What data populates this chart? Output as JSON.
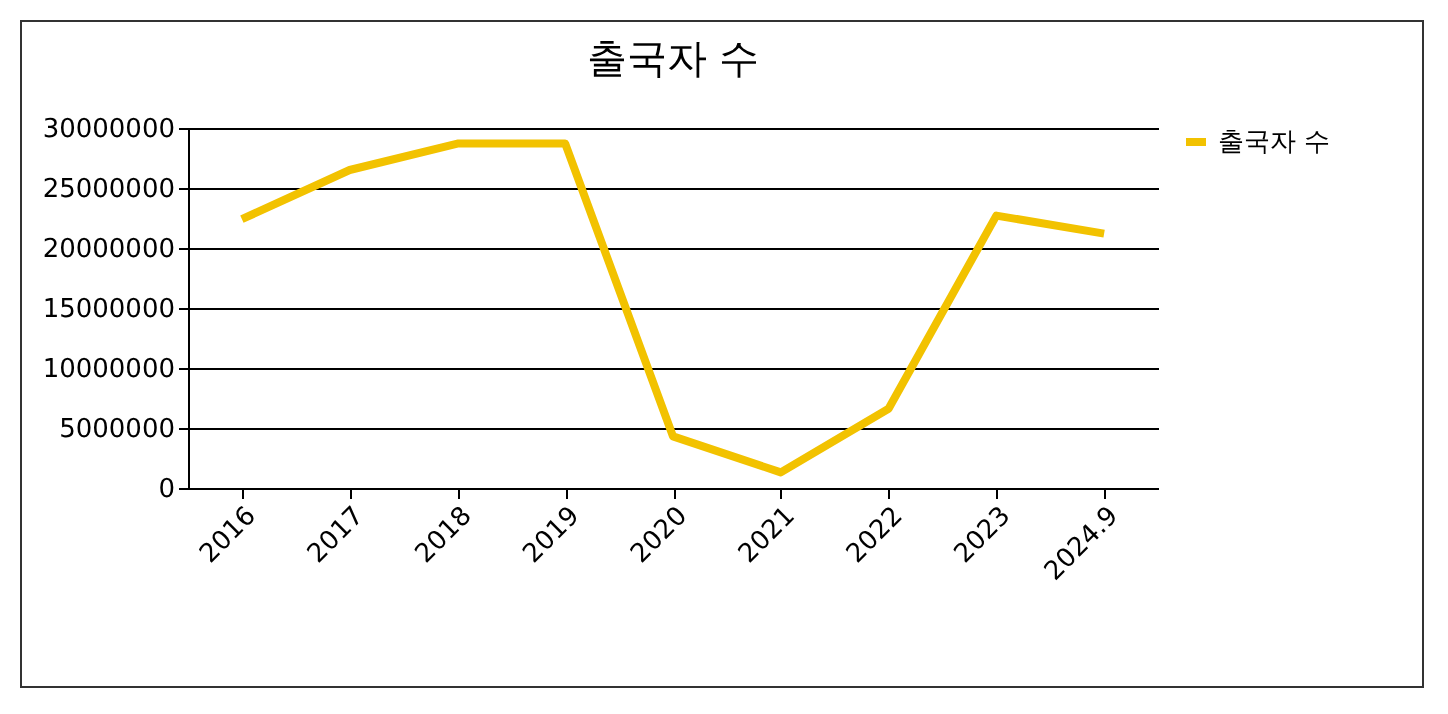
{
  "chart_data": {
    "type": "line",
    "title": "출국자 수",
    "categories": [
      "2016",
      "2017",
      "2018",
      "2019",
      "2020",
      "2021",
      "2022",
      "2023",
      "2024.9"
    ],
    "series": [
      {
        "name": "출국자 수",
        "color": "#f2c200",
        "values": [
          22400000,
          26500000,
          28700000,
          28700000,
          4300000,
          1300000,
          6600000,
          22700000,
          21200000
        ]
      }
    ],
    "ylim": [
      0,
      30000000
    ],
    "yticks": [
      0,
      5000000,
      10000000,
      15000000,
      20000000,
      25000000,
      30000000
    ],
    "grid": "y",
    "legend": "right",
    "marker": "none"
  }
}
